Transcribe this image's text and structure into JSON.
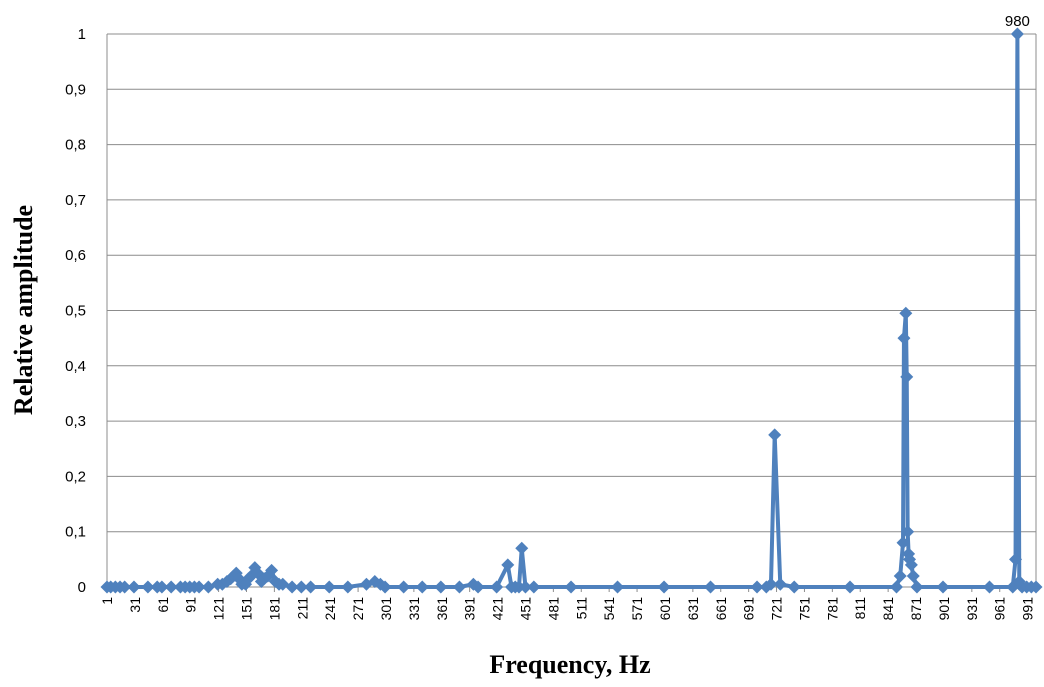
{
  "chart_data": {
    "type": "line",
    "xlabel": "Frequency, Hz",
    "ylabel": "Relative amplitude",
    "x_tick_labels": [
      "1",
      "31",
      "61",
      "91",
      "121",
      "151",
      "181",
      "211",
      "241",
      "271",
      "301",
      "331",
      "361",
      "391",
      "421",
      "451",
      "481",
      "511",
      "541",
      "571",
      "601",
      "631",
      "661",
      "691",
      "721",
      "751",
      "781",
      "811",
      "841",
      "871",
      "901",
      "931",
      "961",
      "991"
    ],
    "y_tick_labels": [
      "0",
      "0,1",
      "0,2",
      "0,3",
      "0,4",
      "0,5",
      "0,6",
      "0,7",
      "0,8",
      "0,9",
      "1"
    ],
    "xlim": [
      1,
      1000
    ],
    "ylim": [
      0,
      1
    ],
    "grid": "horizontal",
    "series": [
      {
        "color": "#4f81bd",
        "marker": "diamond",
        "x": [
          1,
          5,
          10,
          15,
          20,
          30,
          45,
          55,
          60,
          70,
          80,
          85,
          90,
          95,
          100,
          110,
          120,
          125,
          130,
          134,
          137,
          140,
          143,
          146,
          150,
          153,
          156,
          160,
          163,
          167,
          170,
          174,
          178,
          182,
          186,
          190,
          200,
          210,
          220,
          240,
          260,
          280,
          289,
          295,
          300,
          320,
          340,
          360,
          380,
          395,
          400,
          420,
          432,
          436,
          440,
          444,
          447,
          451,
          460,
          500,
          550,
          600,
          650,
          700,
          710,
          715,
          719,
          725,
          740,
          800,
          850,
          854,
          857,
          858,
          860,
          861,
          862,
          863,
          864,
          866,
          868,
          872,
          900,
          950,
          975,
          978,
          980,
          982,
          985,
          990,
          995,
          1000
        ],
        "y": [
          0,
          0,
          0,
          0,
          0,
          0,
          0,
          0,
          0,
          0,
          0,
          0,
          0,
          0,
          0,
          0,
          0.005,
          0.005,
          0.01,
          0.015,
          0.02,
          0.025,
          0.015,
          0.005,
          0.005,
          0.015,
          0.02,
          0.035,
          0.025,
          0.01,
          0.015,
          0.02,
          0.03,
          0.01,
          0.005,
          0.005,
          0,
          0,
          0,
          0,
          0,
          0.005,
          0.01,
          0.005,
          0,
          0,
          0,
          0,
          0,
          0.005,
          0,
          0,
          0.04,
          0,
          0,
          0,
          0.07,
          0,
          0,
          0,
          0,
          0,
          0,
          0,
          0,
          0.005,
          0.275,
          0.005,
          0,
          0,
          0,
          0.02,
          0.08,
          0.45,
          0.495,
          0.38,
          0.1,
          0.06,
          0.05,
          0.04,
          0.02,
          0,
          0,
          0,
          0,
          0.05,
          1,
          0.01,
          0,
          0,
          0,
          0
        ]
      }
    ],
    "annotations": [
      {
        "text": "980",
        "x": 980,
        "y": 1
      }
    ]
  }
}
